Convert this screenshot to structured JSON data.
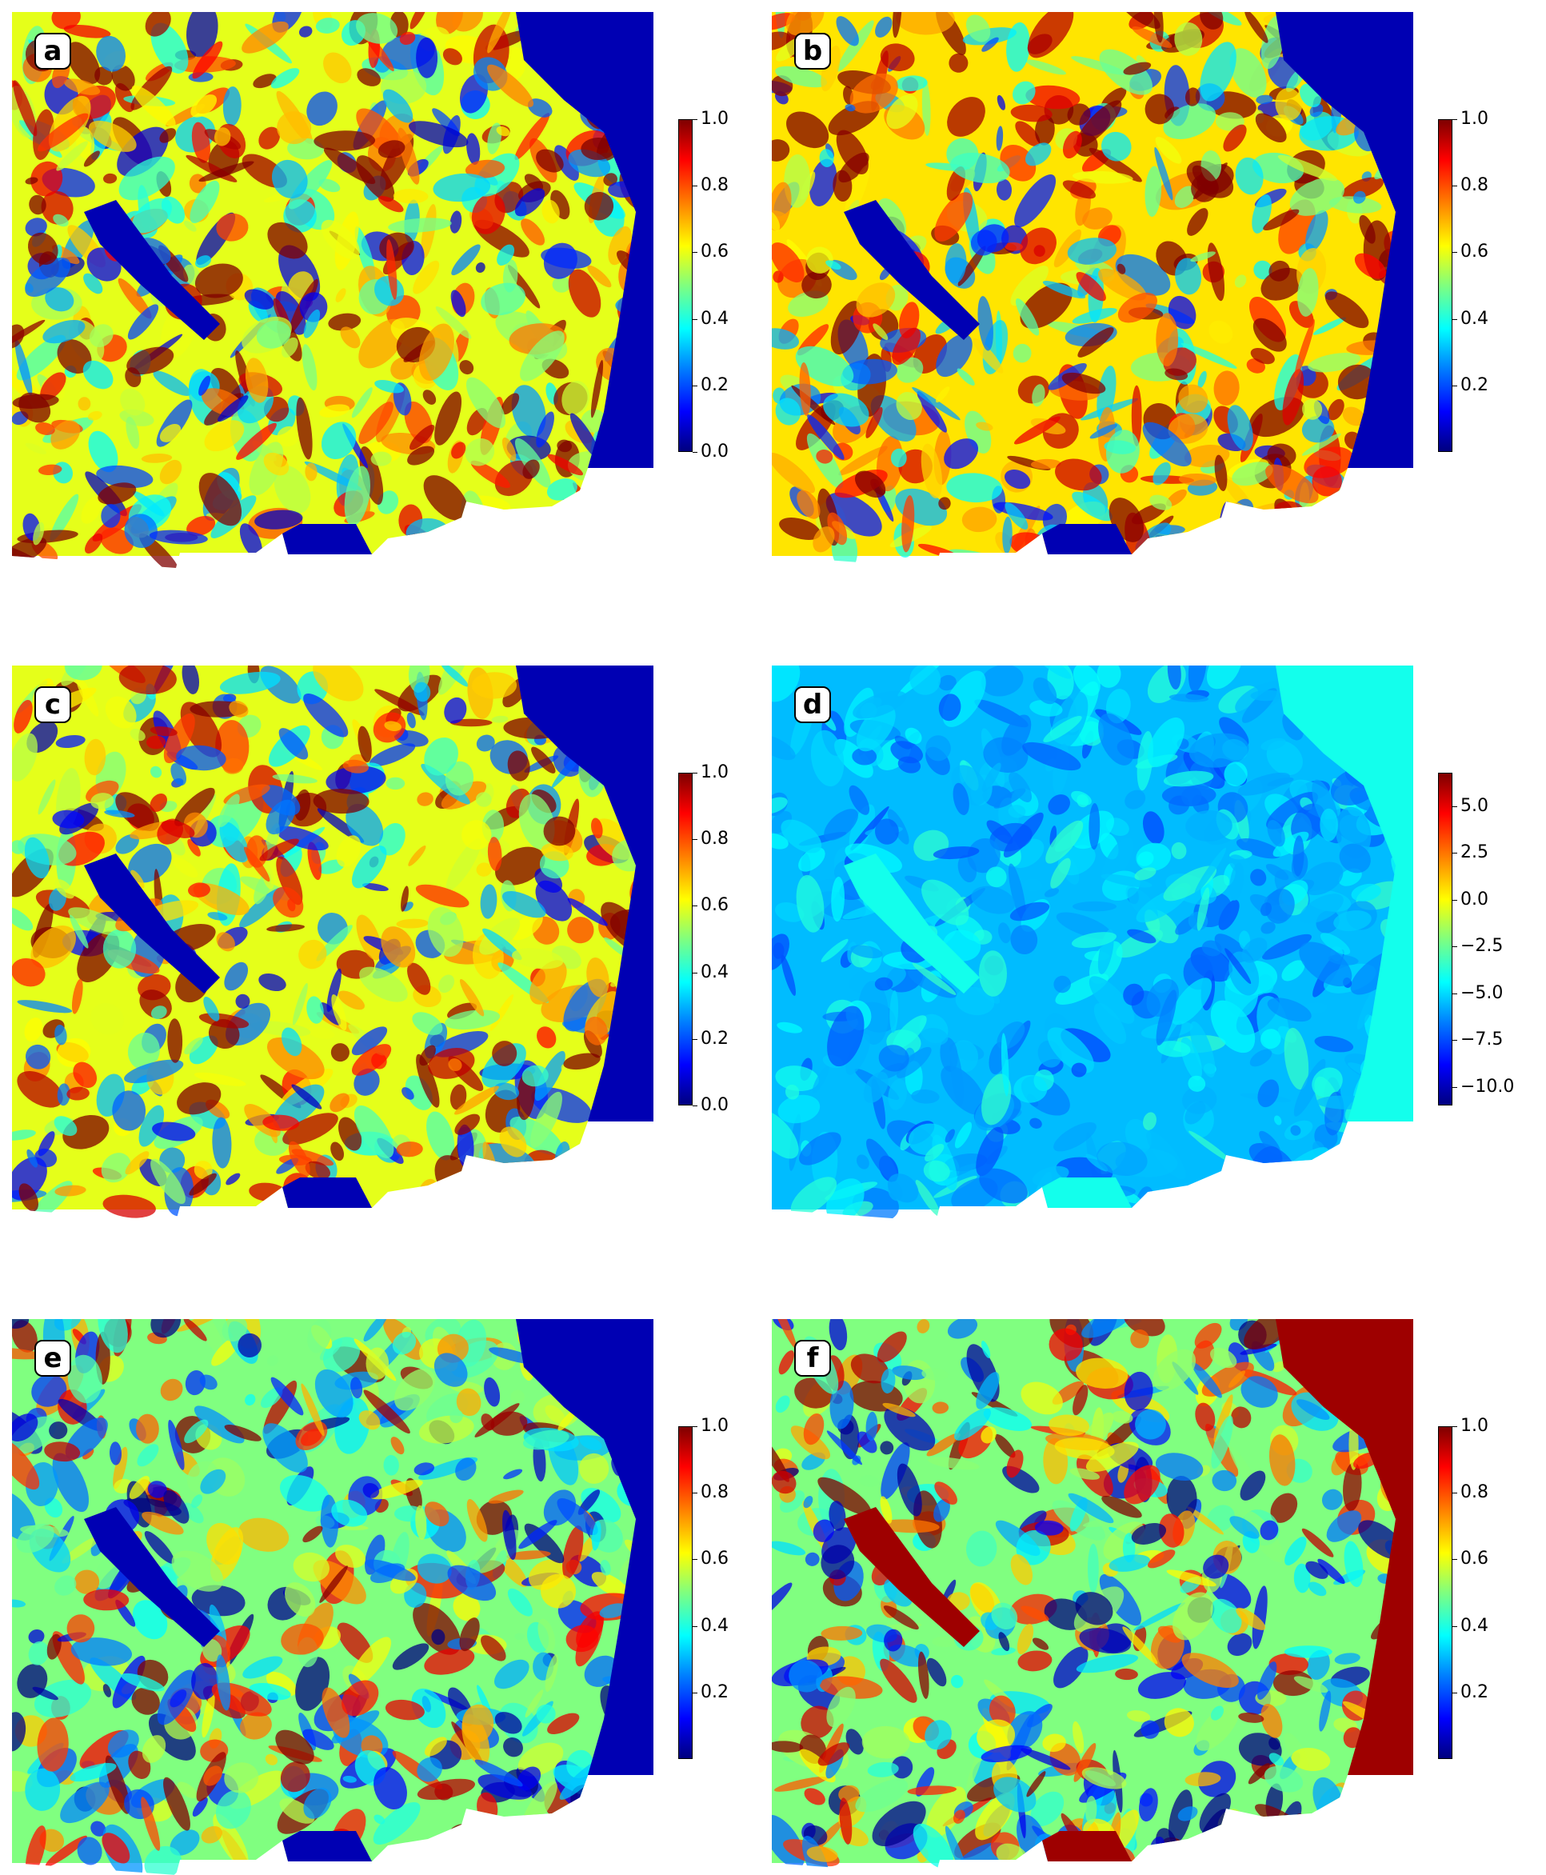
{
  "chart_data": [
    {
      "type": "heatmap",
      "panel_label": "a",
      "colormap": "jet",
      "colorbar": {
        "min": 0.0,
        "max": 1.0,
        "ticks": [
          0.0,
          0.2,
          0.4,
          0.6,
          0.8,
          1.0
        ],
        "tick_labels": [
          "0.0",
          "0.2",
          "0.4",
          "0.6",
          "0.8",
          "1.0"
        ]
      },
      "dominant_value": 0.6,
      "water_value": 0.05
    },
    {
      "type": "heatmap",
      "panel_label": "b",
      "colormap": "jet",
      "colorbar": {
        "min": 0.0,
        "max": 1.0,
        "ticks": [
          0.2,
          0.4,
          0.6,
          0.8,
          1.0
        ],
        "tick_labels": [
          "0.2",
          "0.4",
          "0.6",
          "0.8",
          "1.0"
        ]
      },
      "dominant_value": 0.65,
      "water_value": 0.05
    },
    {
      "type": "heatmap",
      "panel_label": "c",
      "colormap": "jet",
      "colorbar": {
        "min": 0.0,
        "max": 1.0,
        "ticks": [
          0.0,
          0.2,
          0.4,
          0.6,
          0.8,
          1.0
        ],
        "tick_labels": [
          "0.0",
          "0.2",
          "0.4",
          "0.6",
          "0.8",
          "1.0"
        ]
      },
      "dominant_value": 0.6,
      "water_value": 0.05
    },
    {
      "type": "heatmap",
      "panel_label": "d",
      "colormap": "jet",
      "colorbar": {
        "min": -11.0,
        "max": 6.8,
        "ticks": [
          -10.0,
          -7.5,
          -5.0,
          -2.5,
          0.0,
          2.5,
          5.0
        ],
        "tick_labels": [
          "−10.0",
          "−7.5",
          "−5.0",
          "−2.5",
          "0.0",
          "2.5",
          "5.0"
        ]
      },
      "dominant_value": -5.5,
      "water_value": -4.0
    },
    {
      "type": "heatmap",
      "panel_label": "e",
      "colormap": "jet",
      "colorbar": {
        "min": 0.0,
        "max": 1.0,
        "ticks": [
          0.2,
          0.4,
          0.6,
          0.8,
          1.0
        ],
        "tick_labels": [
          "0.2",
          "0.4",
          "0.6",
          "0.8",
          "1.0"
        ]
      },
      "dominant_value": 0.5,
      "water_value": 0.05
    },
    {
      "type": "heatmap",
      "panel_label": "f",
      "colormap": "jet",
      "colorbar": {
        "min": 0.0,
        "max": 1.0,
        "ticks": [
          0.2,
          0.4,
          0.6,
          0.8,
          1.0
        ],
        "tick_labels": [
          "0.2",
          "0.4",
          "0.6",
          "0.8",
          "1.0"
        ]
      },
      "dominant_value": 0.5,
      "water_value": 0.97
    }
  ]
}
